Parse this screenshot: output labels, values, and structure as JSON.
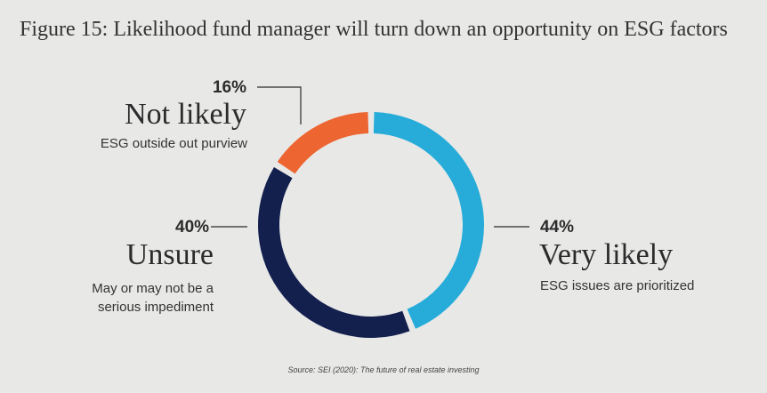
{
  "title": "Figure 15: Likelihood fund manager will turn down an opportunity on ESG factors",
  "source": "Source: SEI (2020): The future of real estate investing",
  "chart_data": {
    "type": "donut",
    "title": "Figure 15: Likelihood fund manager will turn down an opportunity on ESG factors",
    "slices": [
      {
        "key": "very_likely",
        "label": "Very likely",
        "pct_label": "44%",
        "value": 44,
        "description": "ESG issues are prioritized",
        "color": "#27acd9"
      },
      {
        "key": "unsure",
        "label": "Unsure",
        "pct_label": "40%",
        "value": 40,
        "description": "May or may not be a serious impediment",
        "color": "#13204e"
      },
      {
        "key": "not_likely",
        "label": "Not likely",
        "pct_label": "16%",
        "value": 16,
        "description": "ESG outside out purview",
        "color": "#ed6530"
      }
    ]
  },
  "labels": {
    "very_likely": {
      "pct": "44%",
      "name": "Very likely",
      "desc": "ESG issues are prioritized"
    },
    "unsure": {
      "pct": "40%",
      "name": "Unsure",
      "desc_line1": "May or may not be a",
      "desc_line2": "serious impediment"
    },
    "not_likely": {
      "pct": "16%",
      "name": "Not likely",
      "desc": "ESG outside out purview"
    }
  },
  "colors": {
    "background": "#e8e8e7",
    "leader": "#2b2b2b"
  }
}
